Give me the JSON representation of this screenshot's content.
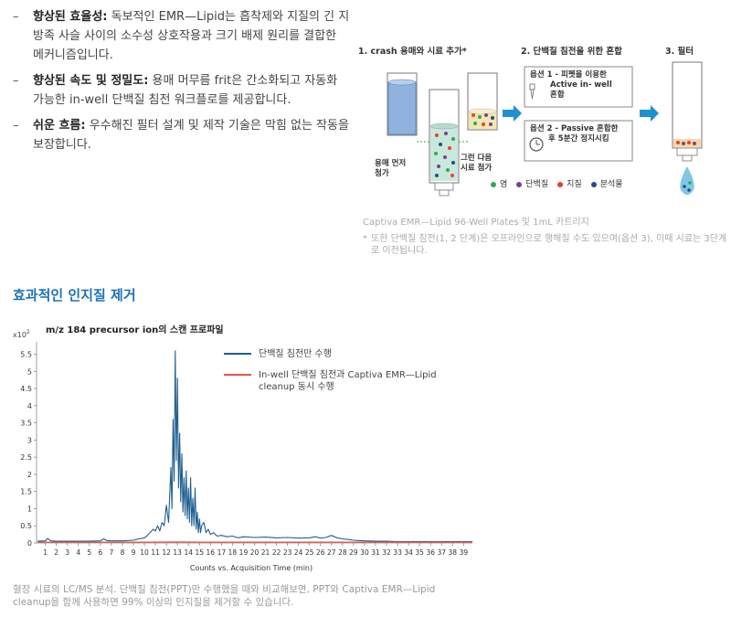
{
  "bullets": [
    {
      "bold": "향상된 효율성:",
      "text": " 독보적인 EMR—Lipid는 흡착제와 지질의 긴 지방족 사슬 사이의 소수성 상호작용과 크기 배제 원리를 결합한 메커니즘입니다."
    },
    {
      "bold": "향상된 속도 및 정밀도:",
      "text": " 용매 머무름 frit은 간소화되고 자동화 가능한 in-well 단백질 침전 워크플로를 제공합니다."
    },
    {
      "bold": "쉬운 흐름:",
      "text": " 우수해진 필터 설계 및 제작 기술은 막힘 없는 작동을 보장합니다."
    }
  ],
  "workflow": {
    "step1": "1. crash 용매와 시료 추가*",
    "step2": "2. 단백질 침전을 위한 혼합",
    "step3": "3. 필터",
    "solvent_first_1": "용매 먼저",
    "solvent_first_2": "첨가",
    "then_sample_1": "그런 다음",
    "then_sample_2": "시료 첨가",
    "option1_title": "옵션 1 - 피펫을 이용한",
    "option1_line2": "Active in- well",
    "option1_line3": "혼합",
    "option2_title": "옵션 2 - Passive 혼합한",
    "option2_line2": "후 5분간 정지시킴",
    "legend": [
      {
        "label": "염",
        "color": "#2eaa4f"
      },
      {
        "label": "단백질",
        "color": "#7b3f98"
      },
      {
        "label": "지질",
        "color": "#e8412c"
      },
      {
        "label": "분석물",
        "color": "#1f4e8c"
      }
    ],
    "caption": "Captiva EMR—Lipid 96-Well Plates 및 1mL 카트리지",
    "footnote_mark": "*",
    "footnote": "또한 단백질 침전(1, 2 단계)은 오프라인으로 행해질 수도 있으며(옵션 3), 이때 시료는 3단계로 이전됩니다."
  },
  "section_title": "효과적인 인지질 제거",
  "colors": {
    "accent": "#1a73b8",
    "arrow": "#1e90d2",
    "series_blue": "#1f5f8f",
    "series_red": "#e8544a"
  },
  "chart_data": {
    "type": "line",
    "title": "m/z 184 precursor ion의 스캔 프로파일",
    "y_exponent_label": "x10",
    "y_exponent_power": "2",
    "xlabel": "Counts vs. Acquisition Time (min)",
    "ylabel": "",
    "xlim": [
      0.2,
      39.8
    ],
    "ylim": [
      0,
      5.7
    ],
    "xticks": [
      1,
      2,
      3,
      4,
      5,
      6,
      7,
      8,
      9,
      10,
      11,
      12,
      13,
      14,
      15,
      16,
      17,
      18,
      19,
      20,
      21,
      22,
      23,
      24,
      25,
      26,
      27,
      28,
      29,
      30,
      31,
      32,
      33,
      34,
      35,
      36,
      37,
      38,
      39
    ],
    "yticks": [
      0,
      0.5,
      1,
      1.5,
      2,
      2.5,
      3,
      3.5,
      4,
      4.5,
      5,
      5.5
    ],
    "ytick_labels": [
      "0",
      "0.5",
      "1",
      "1.5",
      "2",
      "2.5",
      "3",
      "3.5",
      "4",
      "4.5",
      "5",
      "5.5"
    ],
    "series": [
      {
        "name": "단백질 침전만 수행",
        "color": "#1f5f8f",
        "x": [
          0.3,
          1.0,
          1.2,
          1.5,
          2.0,
          3.0,
          4.0,
          5.0,
          6.0,
          6.3,
          6.6,
          7.0,
          8.0,
          9.0,
          9.5,
          10.0,
          10.2,
          10.5,
          10.8,
          11.0,
          11.2,
          11.4,
          11.6,
          11.8,
          12.0,
          12.2,
          12.4,
          12.5,
          12.6,
          12.7,
          12.8,
          12.9,
          13.0,
          13.1,
          13.2,
          13.3,
          13.4,
          13.5,
          13.6,
          13.7,
          13.8,
          13.9,
          14.0,
          14.1,
          14.2,
          14.3,
          14.4,
          14.5,
          14.6,
          14.7,
          14.8,
          14.9,
          15.0,
          15.1,
          15.2,
          15.4,
          15.6,
          15.8,
          16.0,
          16.3,
          16.6,
          17.0,
          17.5,
          18.0,
          18.5,
          19.0,
          20.0,
          21.0,
          22.0,
          23.0,
          24.0,
          25.0,
          25.5,
          26.0,
          26.5,
          27.0,
          27.5,
          28.0,
          28.5,
          29.0,
          29.5,
          30.0,
          31.0,
          32.0,
          33.0,
          34.0,
          35.0,
          36.0,
          37.0,
          38.0,
          39.0,
          39.8
        ],
        "y": [
          0.05,
          0.06,
          0.13,
          0.06,
          0.05,
          0.05,
          0.05,
          0.05,
          0.06,
          0.12,
          0.07,
          0.06,
          0.06,
          0.08,
          0.12,
          0.15,
          0.2,
          0.3,
          0.4,
          0.35,
          0.5,
          0.35,
          0.6,
          0.5,
          1.1,
          0.6,
          2.2,
          1.0,
          3.6,
          1.8,
          5.6,
          2.4,
          4.8,
          1.6,
          3.2,
          1.2,
          2.6,
          0.9,
          1.9,
          0.8,
          2.1,
          0.7,
          1.6,
          0.6,
          1.9,
          0.5,
          1.3,
          0.5,
          1.6,
          0.4,
          0.9,
          0.3,
          0.7,
          0.3,
          0.5,
          0.6,
          0.3,
          0.4,
          0.25,
          0.3,
          0.2,
          0.22,
          0.18,
          0.2,
          0.15,
          0.18,
          0.16,
          0.17,
          0.15,
          0.16,
          0.14,
          0.15,
          0.18,
          0.14,
          0.16,
          0.22,
          0.15,
          0.12,
          0.1,
          0.08,
          0.07,
          0.06,
          0.05,
          0.05,
          0.04,
          0.04,
          0.04,
          0.04,
          0.04,
          0.04,
          0.04,
          0.04
        ]
      },
      {
        "name": "In-well 단백질 침전과 Captiva EMR—Lipid cleanup 동시 수행",
        "color": "#e8544a",
        "x": [
          0.3,
          5,
          10,
          13,
          15,
          20,
          25,
          30,
          35,
          39.8
        ],
        "y": [
          0.02,
          0.02,
          0.02,
          0.03,
          0.02,
          0.02,
          0.02,
          0.02,
          0.02,
          0.02
        ]
      }
    ],
    "legend_lines": [
      [
        "단백질 침전만 수행"
      ],
      [
        "In-well 단백질 침전과 Captiva EMR—Lipid",
        "cleanup 동시 수행"
      ]
    ],
    "legend_position": "top-right",
    "grid": false
  },
  "bottom_caption": "혈장 시료의 LC/MS 분석. 단백질 침전(PPT)만 수행했을 때와 비교해보면, PPT와 Captiva EMR—Lipid cleanup을 함께 사용하면 99% 이상의 인지질을 제거할 수 있습니다."
}
